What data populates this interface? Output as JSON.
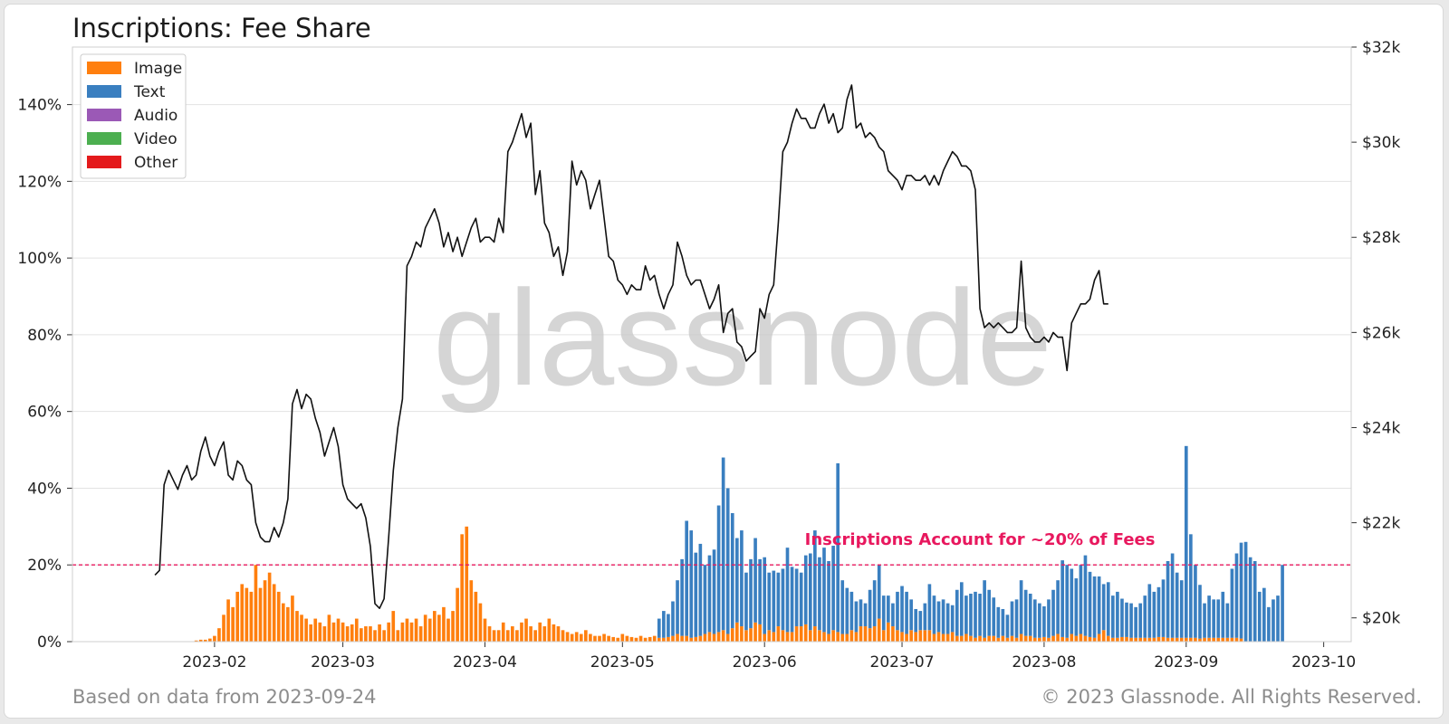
{
  "header": {
    "title": "Inscriptions: Fee Share"
  },
  "footer": {
    "source_note": "Based on data from 2023-09-24",
    "copyright": "© 2023 Glassnode. All Rights Reserved."
  },
  "watermark": "glassnode",
  "chart_data": {
    "type": "bar",
    "title": "Inscriptions: Fee Share",
    "xlabel": "",
    "ylabel": "",
    "y_left": {
      "ticks": [
        "0%",
        "20%",
        "40%",
        "60%",
        "80%",
        "100%",
        "120%",
        "140%"
      ],
      "lim": [
        0,
        155
      ]
    },
    "y_right": {
      "ticks": [
        "$20k",
        "$22k",
        "$24k",
        "$26k",
        "$28k",
        "$30k",
        "$32k"
      ],
      "lim": [
        19500,
        32000
      ]
    },
    "x_ticks": [
      "2023-02",
      "2023-03",
      "2023-04",
      "2023-05",
      "2023-06",
      "2023-07",
      "2023-08",
      "2023-09",
      "2023-10"
    ],
    "x_start": "2023-01-01",
    "x_end": "2023-10-07",
    "legend": {
      "placement": "top-left",
      "entries": [
        {
          "label": "Image",
          "color": "#ff7f0e"
        },
        {
          "label": "Text",
          "color": "#3a7fc0"
        },
        {
          "label": "Audio",
          "color": "#9b59b6"
        },
        {
          "label": "Video",
          "color": "#4caf50"
        },
        {
          "label": "Other",
          "color": "#e41a1c"
        }
      ]
    },
    "reference_line": {
      "value": 20,
      "label": "Inscriptions Account for ~20% of Fees",
      "color": "#e8185e"
    },
    "grid": true,
    "bar_series": {
      "start_date": "2023-01-28",
      "image": [
        0.3,
        0.5,
        0.5,
        0.8,
        1.5,
        3.5,
        7,
        11,
        9,
        13,
        15,
        14,
        13,
        20,
        14,
        16,
        18,
        15,
        13,
        10,
        9,
        12,
        8,
        7,
        6,
        4.5,
        6,
        5,
        4,
        7,
        5,
        6,
        5,
        4,
        4.5,
        6,
        3.5,
        4,
        4,
        3,
        4.5,
        3,
        5,
        8,
        3,
        5,
        6,
        5,
        6,
        4,
        7,
        6,
        8,
        7,
        9,
        6,
        8,
        14,
        28,
        30,
        16,
        13,
        10,
        6,
        4,
        3,
        3,
        5,
        3,
        4,
        3,
        5,
        6,
        4,
        3,
        5,
        4,
        6,
        4.5,
        4,
        3,
        2.5,
        2,
        2.5,
        2,
        3,
        2,
        1.5,
        1.5,
        2,
        1.5,
        1.2,
        1,
        2,
        1.5,
        1.2,
        1,
        1.5,
        1,
        1.2,
        1.5,
        1,
        1,
        1.2,
        1.5,
        2,
        1.5,
        1.5,
        1,
        1.2,
        1.5,
        2,
        2.5,
        2,
        2.5,
        3,
        2,
        3.5,
        5,
        4,
        3,
        3.5,
        5,
        4.5,
        2,
        3,
        2.5,
        4,
        3,
        2.5,
        2.5,
        4,
        4,
        4.5,
        3,
        4,
        3,
        2.5,
        2,
        3,
        2.5,
        2,
        2,
        3,
        2.5,
        4,
        4,
        3.5,
        4,
        6,
        3,
        5,
        4,
        3,
        2.5,
        2,
        3,
        2.5,
        3,
        3,
        3,
        2,
        2.5,
        2,
        2,
        2.5,
        1.5,
        1.5,
        2,
        1.5,
        1,
        1.5,
        1,
        1.5,
        1.5,
        1,
        1.5,
        1,
        1.5,
        1,
        2,
        1.5,
        1.5,
        1,
        1,
        1.2,
        1,
        1.5,
        2,
        1.2,
        1,
        2,
        1.5,
        2,
        1.5,
        1.2,
        1,
        2,
        3,
        1.5,
        1,
        1,
        1.2,
        1.2,
        1,
        1,
        1,
        1,
        1,
        1,
        1.2,
        1.2,
        1,
        1,
        1,
        1,
        1,
        1,
        1,
        0.8,
        1,
        1,
        1,
        1,
        1,
        1,
        1,
        1,
        0.8
      ],
      "text": [
        0,
        0,
        0,
        0,
        0,
        0,
        0,
        0,
        0,
        0,
        0,
        0,
        0,
        0,
        0,
        0,
        0,
        0,
        0,
        0,
        0,
        0,
        0,
        0,
        0,
        0,
        0,
        0,
        0,
        0,
        0,
        0,
        0,
        0,
        0,
        0,
        0,
        0,
        0,
        0,
        0,
        0,
        0,
        0,
        0,
        0,
        0,
        0,
        0,
        0,
        0,
        0,
        0,
        0,
        0,
        0,
        0,
        0,
        0,
        0,
        0,
        0,
        0,
        0,
        0,
        0,
        0,
        0,
        0,
        0,
        0,
        0,
        0,
        0,
        0,
        0,
        0,
        0,
        0,
        0,
        0,
        0,
        0,
        0,
        0,
        0,
        0,
        0,
        0,
        0,
        0,
        0,
        0,
        0,
        0,
        0,
        0,
        0,
        0,
        0,
        0,
        5,
        7,
        6,
        9,
        14,
        20,
        30,
        28,
        22,
        24,
        18,
        20,
        22,
        33,
        45,
        38,
        30,
        22,
        25,
        15,
        18,
        22,
        17,
        20,
        15,
        16,
        14,
        16,
        22,
        17,
        15,
        14,
        18,
        20,
        25,
        19,
        22,
        19,
        22,
        44,
        14,
        12,
        10,
        8,
        7,
        6,
        10,
        12,
        14,
        9,
        7,
        6,
        10,
        12,
        11,
        8,
        6,
        5,
        7,
        12,
        10,
        8,
        9,
        8,
        7,
        12,
        14,
        10,
        11,
        12,
        11,
        15,
        12,
        10,
        8,
        7,
        6,
        9,
        10,
        14,
        12,
        11,
        10,
        9,
        8,
        10,
        12,
        14,
        20,
        19,
        17,
        15,
        18,
        21,
        17,
        16,
        15,
        12,
        14,
        11,
        12,
        10,
        9,
        9,
        8,
        9,
        11,
        14,
        12,
        13,
        15,
        20,
        22,
        17,
        15,
        50,
        27,
        19,
        14,
        9,
        11,
        10,
        10,
        12,
        9,
        18,
        22,
        25,
        26,
        22,
        21,
        13,
        14,
        9,
        11,
        12,
        20
      ]
    },
    "price_series": {
      "start_date": "2023-01-19",
      "values": [
        20900,
        21000,
        22800,
        23100,
        22900,
        22700,
        23000,
        23200,
        22900,
        23000,
        23500,
        23800,
        23400,
        23200,
        23500,
        23700,
        23000,
        22900,
        23300,
        23200,
        22900,
        22800,
        22000,
        21700,
        21600,
        21600,
        21900,
        21700,
        22000,
        22500,
        24500,
        24800,
        24400,
        24700,
        24600,
        24200,
        23900,
        23400,
        23700,
        24000,
        23600,
        22800,
        22500,
        22400,
        22300,
        22400,
        22100,
        21500,
        20300,
        20200,
        20400,
        21700,
        23100,
        24000,
        24600,
        27400,
        27600,
        27900,
        27800,
        28200,
        28400,
        28600,
        28300,
        27800,
        28100,
        27700,
        28000,
        27600,
        27900,
        28200,
        28400,
        27900,
        28000,
        28000,
        27900,
        28400,
        28100,
        29800,
        30000,
        30300,
        30600,
        30100,
        30400,
        28900,
        29400,
        28300,
        28100,
        27600,
        27800,
        27200,
        27700,
        29600,
        29100,
        29400,
        29200,
        28600,
        28900,
        29200,
        28400,
        27600,
        27500,
        27100,
        27000,
        26800,
        27000,
        26900,
        26900,
        27400,
        27100,
        27200,
        26800,
        26500,
        26800,
        27000,
        27900,
        27600,
        27200,
        27000,
        27100,
        27100,
        26800,
        26500,
        26700,
        27000,
        26000,
        26400,
        26500,
        25800,
        25700,
        25400,
        25500,
        25600,
        26500,
        26300,
        26800,
        27000,
        28300,
        29800,
        30000,
        30400,
        30700,
        30500,
        30500,
        30300,
        30300,
        30600,
        30800,
        30400,
        30600,
        30200,
        30300,
        30900,
        31200,
        30300,
        30400,
        30100,
        30200,
        30100,
        29900,
        29800,
        29400,
        29300,
        29200,
        29000,
        29300,
        29300,
        29200,
        29200,
        29300,
        29100,
        29300,
        29100,
        29400,
        29600,
        29800,
        29700,
        29500,
        29500,
        29400,
        29000,
        26500,
        26100,
        26200,
        26100,
        26200,
        26100,
        26000,
        26000,
        26100,
        27500,
        26100,
        25900,
        25800,
        25800,
        25900,
        25800,
        26000,
        25900,
        25900,
        25200,
        26200,
        26400,
        26600,
        26600,
        26700,
        27100,
        27300,
        26600,
        26600
      ]
    }
  }
}
